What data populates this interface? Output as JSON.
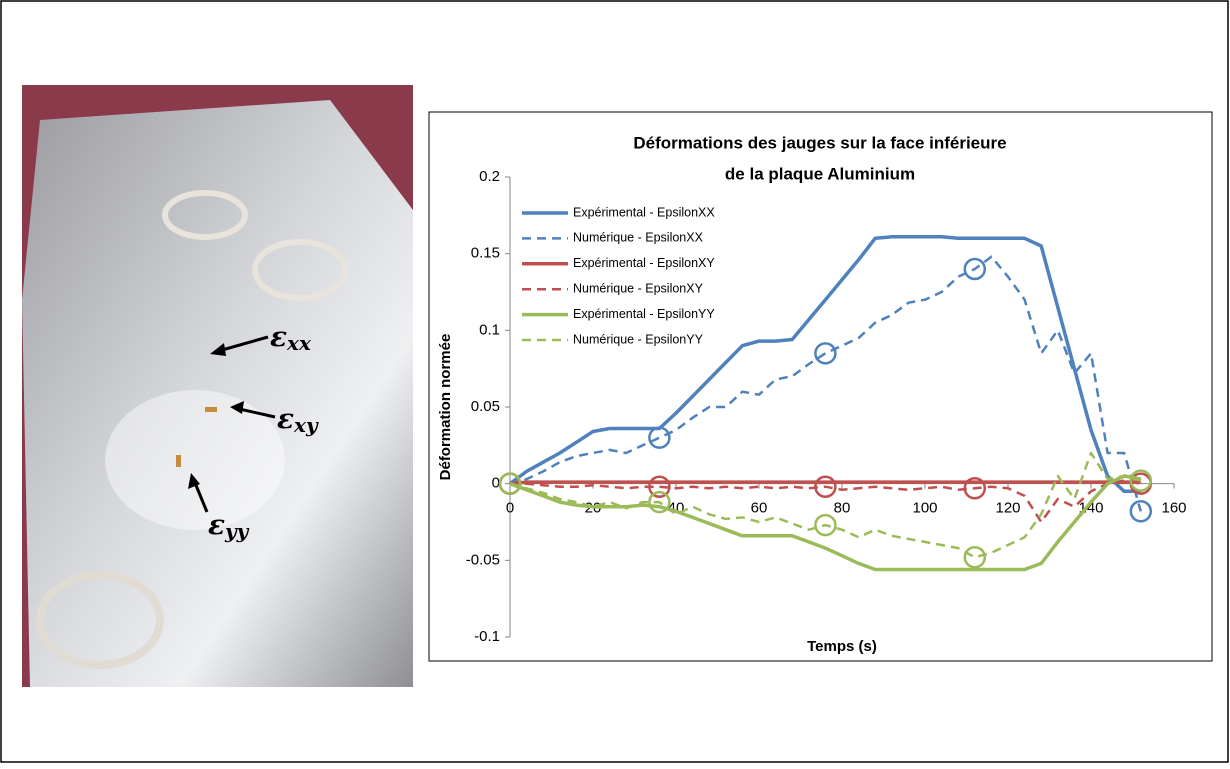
{
  "photo": {
    "labels": [
      {
        "symbol": "ε",
        "subscript": "xx"
      },
      {
        "symbol": "ε",
        "subscript": "xy"
      },
      {
        "symbol": "ε",
        "subscript": "yy"
      }
    ]
  },
  "chart_data": {
    "type": "line",
    "title": [
      "Déformations des jauges sur la face inférieure",
      "de la plaque Aluminium"
    ],
    "x_label": "Temps (s)",
    "y_label": "Déformation normée",
    "xlim": [
      0,
      160
    ],
    "xticks": [
      0,
      20,
      40,
      60,
      80,
      100,
      120,
      140,
      160
    ],
    "ylim": [
      -0.1,
      0.2
    ],
    "yticks": [
      -0.1,
      -0.05,
      0,
      0.05,
      0.1,
      0.15,
      0.2
    ],
    "legend": "top-left",
    "circled_x": [
      0,
      36,
      76,
      112,
      152
    ],
    "x": [
      0,
      4,
      8,
      12,
      16,
      20,
      24,
      28,
      32,
      36,
      40,
      44,
      48,
      52,
      56,
      60,
      64,
      68,
      72,
      76,
      80,
      84,
      88,
      92,
      96,
      100,
      104,
      108,
      112,
      116,
      120,
      124,
      128,
      132,
      136,
      140,
      144,
      148,
      152
    ],
    "series": [
      {
        "name": "Expérimental - EpsilonXX",
        "color": "#4f81bd",
        "dash": false,
        "values": [
          0,
          0.008,
          0.014,
          0.02,
          0.027,
          0.034,
          0.036,
          0.036,
          0.036,
          0.036,
          0.046,
          0.057,
          0.068,
          0.079,
          0.09,
          0.093,
          0.093,
          0.094,
          0.107,
          0.12,
          0.133,
          0.146,
          0.16,
          0.161,
          0.161,
          0.161,
          0.161,
          0.16,
          0.16,
          0.16,
          0.16,
          0.16,
          0.155,
          0.115,
          0.075,
          0.035,
          0.005,
          -0.005,
          -0.005
        ]
      },
      {
        "name": "Numérique - EpsilonXX",
        "color": "#4f81bd",
        "dash": true,
        "values": [
          0,
          0.003,
          0.008,
          0.014,
          0.018,
          0.02,
          0.022,
          0.02,
          0.025,
          0.03,
          0.035,
          0.043,
          0.05,
          0.05,
          0.06,
          0.058,
          0.068,
          0.07,
          0.078,
          0.085,
          0.09,
          0.095,
          0.105,
          0.11,
          0.118,
          0.12,
          0.125,
          0.135,
          0.14,
          0.148,
          0.135,
          0.12,
          0.085,
          0.1,
          0.072,
          0.085,
          0.02,
          0.02,
          -0.018
        ]
      },
      {
        "name": "Expérimental - EpsilonXY",
        "color": "#c0504d",
        "dash": false,
        "values": [
          0,
          0.001,
          0.001,
          0.001,
          0.001,
          0.001,
          0.001,
          0.001,
          0.001,
          0.001,
          0.001,
          0.001,
          0.001,
          0.001,
          0.001,
          0.001,
          0.001,
          0.001,
          0.001,
          0.001,
          0.001,
          0.001,
          0.001,
          0.001,
          0.001,
          0.001,
          0.001,
          0.001,
          0.001,
          0.001,
          0.001,
          0.001,
          0.001,
          0.001,
          0.001,
          0.001,
          0.001,
          0.001,
          0.001
        ]
      },
      {
        "name": "Numérique - EpsilonXY",
        "color": "#c0504d",
        "dash": true,
        "values": [
          0,
          0,
          -0.001,
          -0.002,
          -0.002,
          -0.001,
          -0.002,
          -0.003,
          -0.002,
          -0.002,
          -0.003,
          -0.002,
          -0.003,
          -0.002,
          -0.003,
          -0.002,
          -0.003,
          -0.002,
          -0.003,
          -0.002,
          -0.004,
          -0.003,
          -0.002,
          -0.003,
          -0.004,
          -0.003,
          -0.002,
          -0.004,
          -0.003,
          -0.002,
          -0.003,
          -0.008,
          -0.025,
          -0.01,
          -0.015,
          -0.005,
          0,
          0.002,
          0
        ]
      },
      {
        "name": "Expérimental - EpsilonYY",
        "color": "#9bbb59",
        "dash": false,
        "values": [
          0,
          -0.004,
          -0.008,
          -0.012,
          -0.014,
          -0.015,
          -0.015,
          -0.015,
          -0.014,
          -0.015,
          -0.018,
          -0.022,
          -0.026,
          -0.03,
          -0.034,
          -0.034,
          -0.034,
          -0.034,
          -0.038,
          -0.042,
          -0.047,
          -0.052,
          -0.056,
          -0.056,
          -0.056,
          -0.056,
          -0.056,
          -0.056,
          -0.056,
          -0.056,
          -0.056,
          -0.056,
          -0.052,
          -0.038,
          -0.025,
          -0.012,
          0,
          0.005,
          0.003
        ]
      },
      {
        "name": "Numérique - EpsilonYY",
        "color": "#9bbb59",
        "dash": true,
        "values": [
          0,
          -0.003,
          -0.006,
          -0.01,
          -0.012,
          -0.015,
          -0.012,
          -0.016,
          -0.012,
          -0.012,
          -0.02,
          -0.015,
          -0.02,
          -0.023,
          -0.022,
          -0.025,
          -0.022,
          -0.026,
          -0.03,
          -0.027,
          -0.03,
          -0.035,
          -0.03,
          -0.034,
          -0.036,
          -0.038,
          -0.04,
          -0.042,
          -0.048,
          -0.045,
          -0.04,
          -0.035,
          -0.02,
          0.005,
          -0.01,
          0.02,
          0.003,
          0.005,
          0.002
        ]
      }
    ]
  }
}
